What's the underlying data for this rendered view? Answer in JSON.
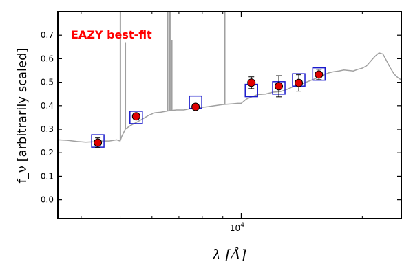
{
  "chart_data": {
    "type": "scatter",
    "annotation": "EAZY best-fit",
    "annotation_color": "#ff0000",
    "xlabel": "λ [Å]",
    "ylabel": "f_ν [arbitrarily scaled]",
    "x_scale": "log",
    "xlim": [
      3500,
      25000
    ],
    "ylim": [
      -0.08,
      0.8
    ],
    "yticks": [
      0.0,
      0.1,
      0.2,
      0.3,
      0.4,
      0.5,
      0.6,
      0.7
    ],
    "xtick_labels": [
      "10^4"
    ],
    "grid": false,
    "colors": {
      "model": "#a0a0a0",
      "photometry_fill": "#e00000",
      "model_flux_box": "#1a1acc"
    },
    "model_sed": {
      "wavelength": [
        3500,
        3700,
        3900,
        4100,
        4300,
        4500,
        4700,
        4900,
        5000,
        5050,
        5150,
        5300,
        5500,
        5700,
        5900,
        6100,
        6300,
        6600,
        6900,
        7200,
        7500,
        7800,
        8200,
        8600,
        9000,
        9500,
        9800,
        10000,
        10300,
        10700,
        11000,
        11500,
        12000,
        12500,
        13000,
        13500,
        14000,
        14500,
        15000,
        15500,
        16000,
        16500,
        17000,
        17500,
        18000,
        18500,
        19000,
        19500,
        20000,
        20500,
        21000,
        21500,
        22000,
        22500,
        23000,
        23500,
        24000,
        24500,
        25000
      ],
      "flux": [
        0.255,
        0.253,
        0.248,
        0.245,
        0.247,
        0.25,
        0.25,
        0.255,
        0.25,
        0.27,
        0.3,
        0.315,
        0.33,
        0.345,
        0.36,
        0.37,
        0.372,
        0.378,
        0.382,
        0.382,
        0.388,
        0.392,
        0.395,
        0.4,
        0.405,
        0.408,
        0.41,
        0.41,
        0.428,
        0.44,
        0.448,
        0.45,
        0.458,
        0.46,
        0.47,
        0.482,
        0.49,
        0.5,
        0.51,
        0.52,
        0.53,
        0.54,
        0.545,
        0.548,
        0.552,
        0.55,
        0.548,
        0.555,
        0.56,
        0.57,
        0.59,
        0.61,
        0.625,
        0.62,
        0.59,
        0.56,
        0.535,
        0.52,
        0.51
      ]
    },
    "emission_lines": [
      {
        "wavelength": 5007,
        "peak": 0.8
      },
      {
        "wavelength": 5150,
        "peak": 0.67
      },
      {
        "wavelength": 6563,
        "peak": 0.8
      },
      {
        "wavelength": 6650,
        "peak": 0.8
      },
      {
        "wavelength": 6720,
        "peak": 0.68
      },
      {
        "wavelength": 9100,
        "peak": 0.8
      }
    ],
    "photometry": [
      {
        "x": 4400,
        "y": 0.243,
        "err": 0.02,
        "model": 0.25
      },
      {
        "x": 5480,
        "y": 0.355,
        "err": 0.012,
        "model": 0.35
      },
      {
        "x": 7700,
        "y": 0.395,
        "err": 0.012,
        "model": 0.415
      },
      {
        "x": 10600,
        "y": 0.498,
        "err": 0.025,
        "model": 0.465
      },
      {
        "x": 12400,
        "y": 0.483,
        "err": 0.045,
        "model": 0.476
      },
      {
        "x": 13900,
        "y": 0.497,
        "err": 0.035,
        "model": 0.51
      },
      {
        "x": 15600,
        "y": 0.533,
        "err": 0.022,
        "model": 0.535
      }
    ]
  }
}
